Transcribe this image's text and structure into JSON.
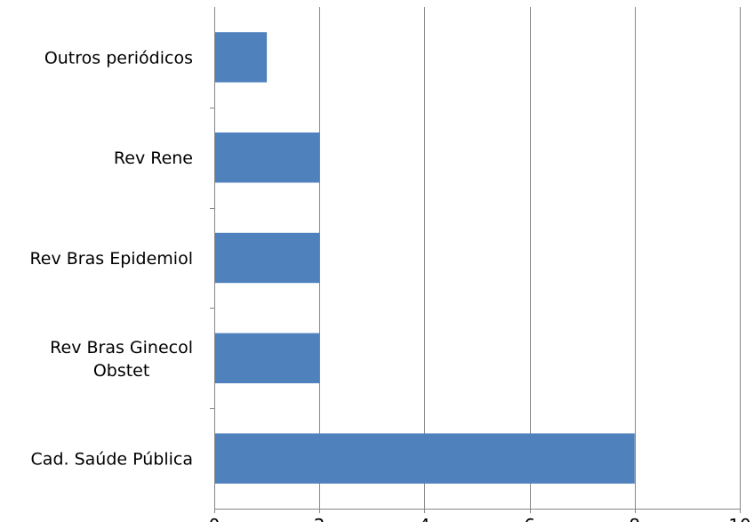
{
  "chart_data": {
    "type": "bar",
    "orientation": "horizontal",
    "title": "",
    "xlabel": "",
    "ylabel": "",
    "categories": [
      "Cad. Saúde Pública",
      "Rev Bras Ginecol Obstet",
      "Rev Bras Epidemiol",
      "Rev Rene",
      "Outros periódicos"
    ],
    "category_lines": [
      [
        "Cad. Saúde Pública"
      ],
      [
        "Rev Bras Ginecol",
        "Obstet"
      ],
      [
        "Rev Bras Epidemiol"
      ],
      [
        "Rev Rene"
      ],
      [
        "Outros periódicos"
      ]
    ],
    "values": [
      8,
      2,
      2,
      2,
      1
    ],
    "xlim": [
      0,
      10
    ],
    "xticks": [
      0,
      2,
      4,
      6,
      8,
      10
    ],
    "xtick_labels": [
      "0",
      "2",
      "4",
      "6",
      "8",
      "10"
    ],
    "grid": "vertical",
    "legend": "none",
    "colors": {
      "bar": "#4F81BD",
      "grid": "#868686",
      "text": "#000000"
    }
  }
}
